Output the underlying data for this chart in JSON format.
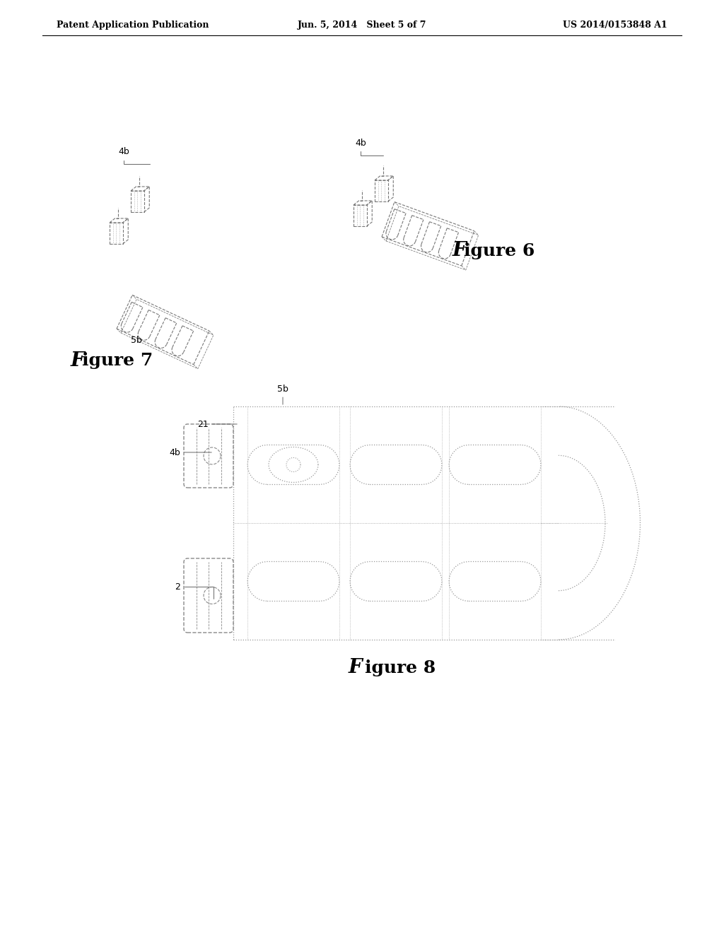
{
  "bg_color": "#ffffff",
  "text_color": "#000000",
  "light_gray": "#aaaaaa",
  "dark_gray": "#666666",
  "header_left": "Patent Application Publication",
  "header_center": "Jun. 5, 2014   Sheet 5 of 7",
  "header_right": "US 2014/0153848 A1",
  "fig6_label": "F",
  "fig7_label": "F",
  "fig8_label": "F",
  "fig6_rest": "igure 6",
  "fig7_rest": "igure 7",
  "fig8_rest": "igure 8"
}
